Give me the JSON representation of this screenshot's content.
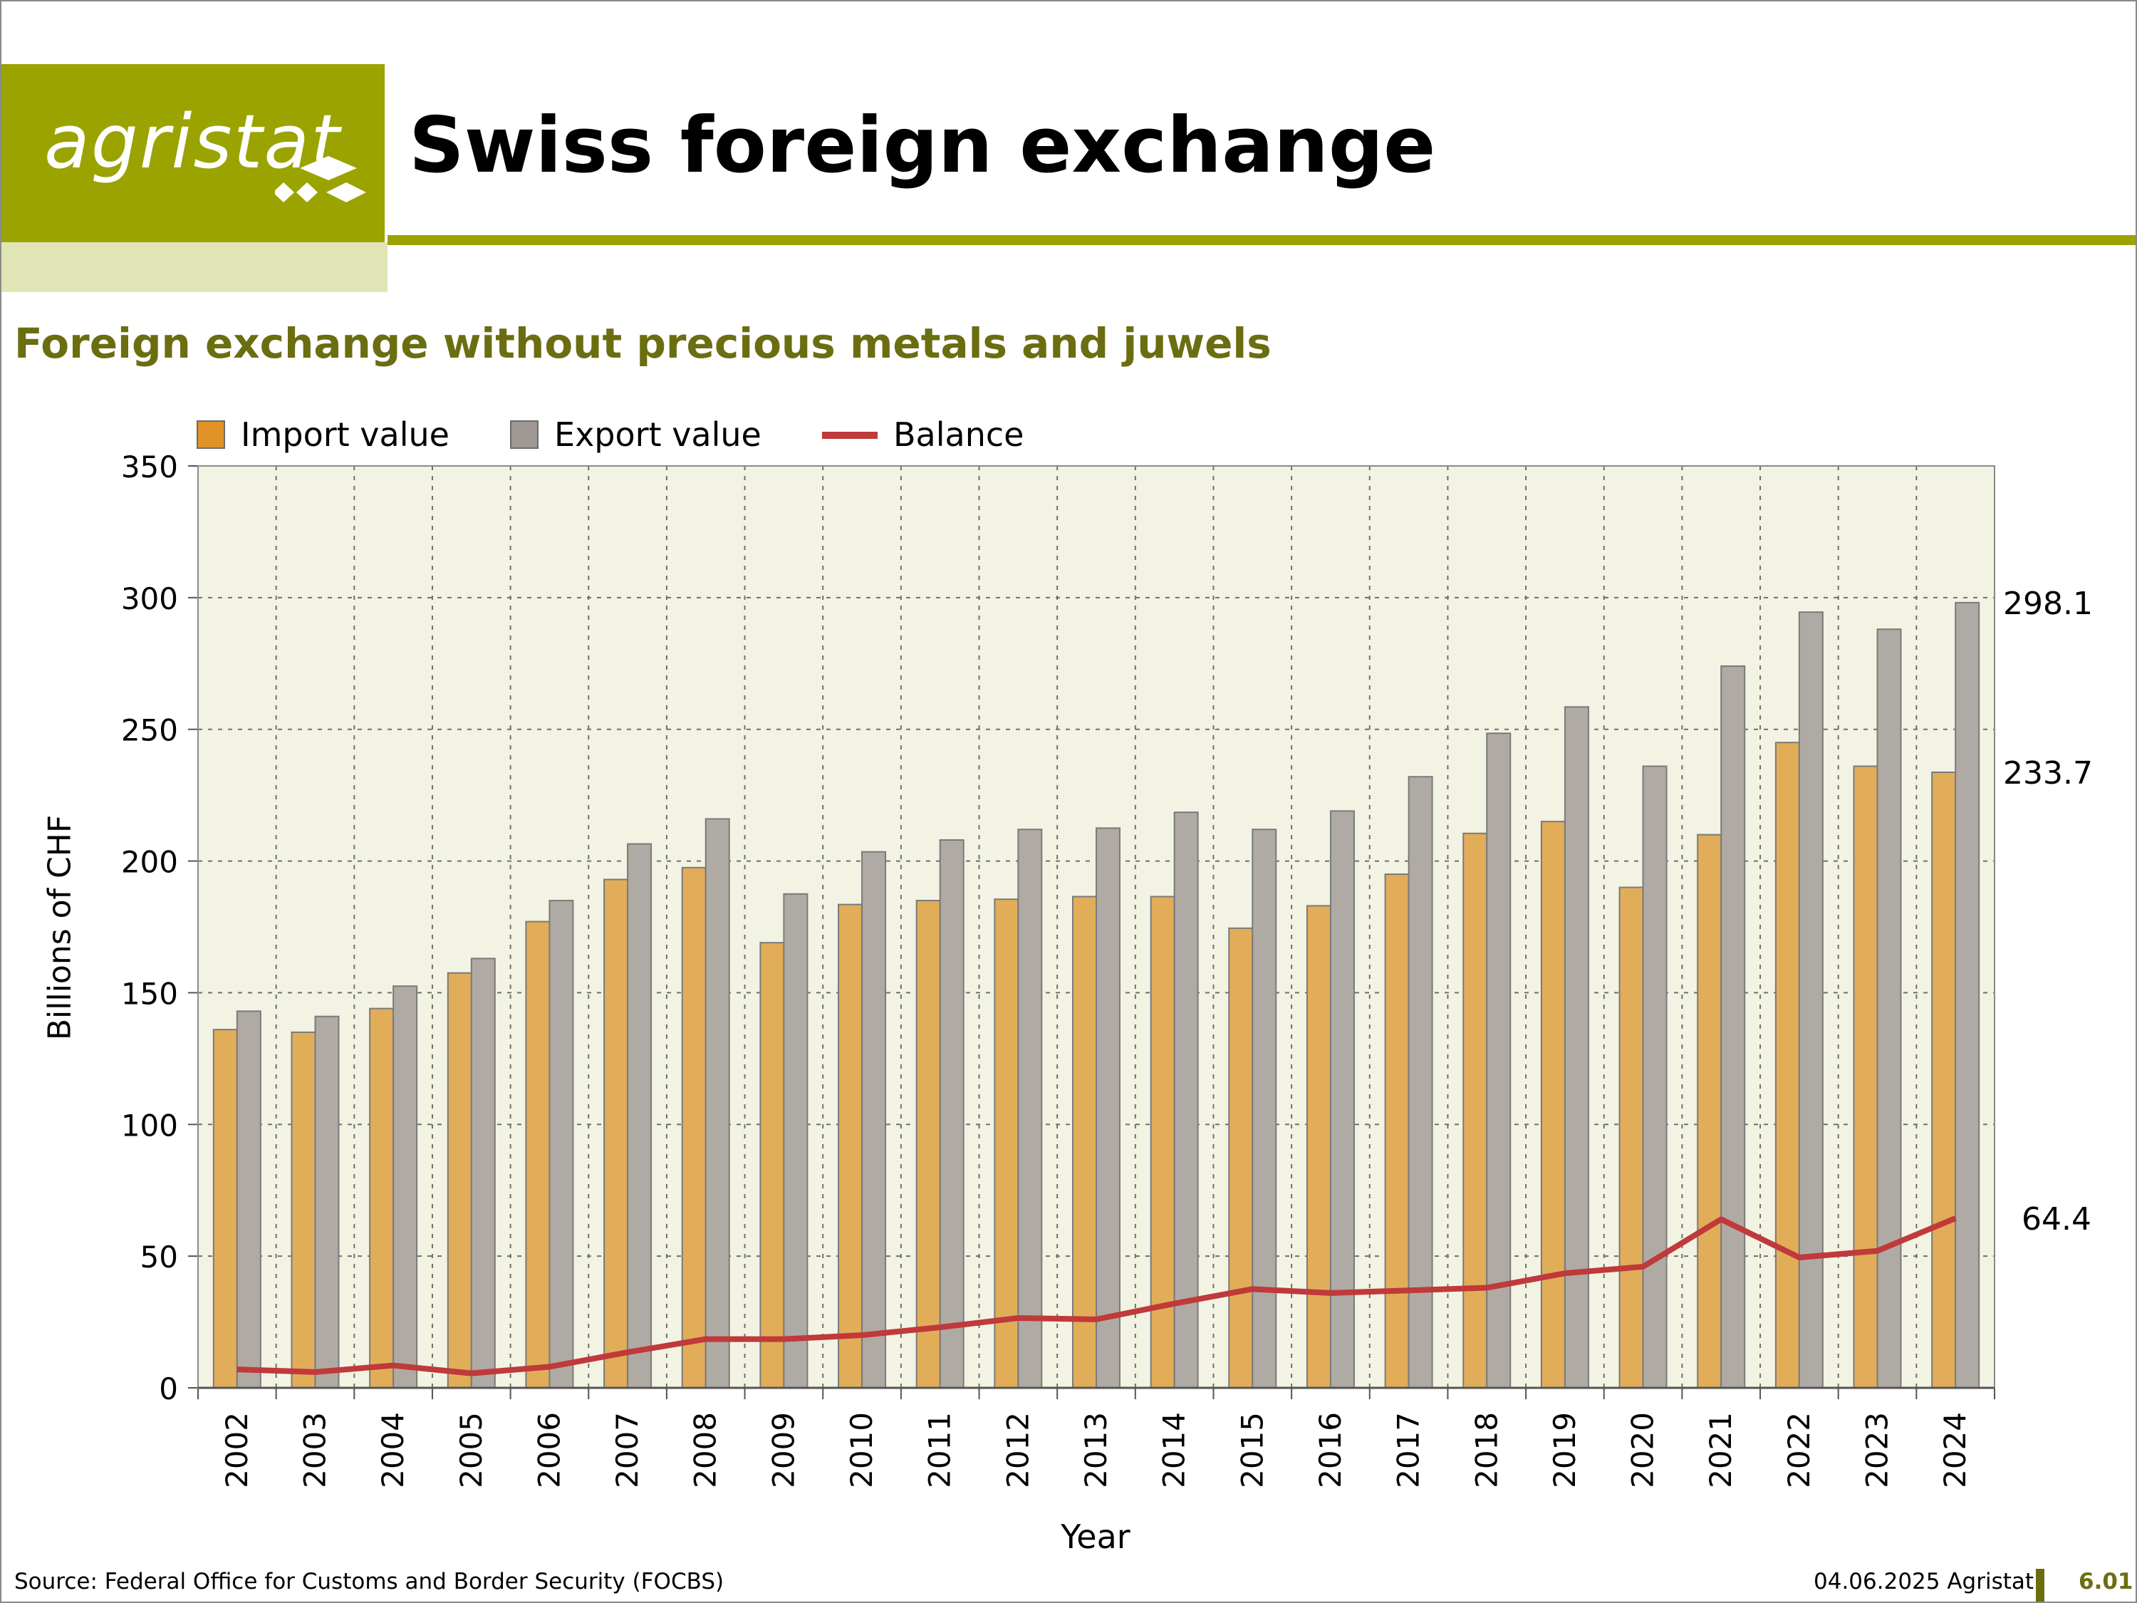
{
  "header": {
    "logo_text": "agristat",
    "title": "Swiss foreign exchange",
    "subtitle": "Foreign exchange without precious metals and juwels"
  },
  "footer": {
    "source": "Source: Federal Office for Customs and Border Security (FOCBS)",
    "date_publisher": "04.06.2025 Agristat",
    "page": "6.01"
  },
  "colors": {
    "brand": "#9ba300",
    "subtitle": "#6b6e10",
    "plot_bg": "#f3f3e3",
    "import": "#e2ad58",
    "export": "#b0aaa4",
    "balance": "#c0393b"
  },
  "chart_data": {
    "type": "bar",
    "title": "",
    "xlabel": "Year",
    "ylabel": "Billions of CHF",
    "ylim": [
      0,
      350
    ],
    "yticks": [
      0,
      50,
      100,
      150,
      200,
      250,
      300,
      350
    ],
    "grid": true,
    "legend": "top-left",
    "categories": [
      "2002",
      "2003",
      "2004",
      "2005",
      "2006",
      "2007",
      "2008",
      "2009",
      "2010",
      "2011",
      "2012",
      "2013",
      "2014",
      "2015",
      "2016",
      "2017",
      "2018",
      "2019",
      "2020",
      "2021",
      "2022",
      "2023",
      "2024"
    ],
    "series": [
      {
        "name": "Import value",
        "type": "bar",
        "values": [
          136,
          135,
          144,
          157.5,
          177,
          193,
          197.5,
          169,
          183.5,
          185,
          185.5,
          186.5,
          186.5,
          174.5,
          183,
          195,
          210.5,
          215,
          190,
          210,
          245,
          236,
          233.7
        ]
      },
      {
        "name": "Export value",
        "type": "bar",
        "values": [
          143,
          141,
          152.5,
          163,
          185,
          206.5,
          216,
          187.5,
          203.5,
          208,
          212,
          212.5,
          218.5,
          212,
          219,
          232,
          248.5,
          258.5,
          236,
          274,
          294.5,
          288,
          298.1
        ]
      },
      {
        "name": "Balance",
        "type": "line",
        "values": [
          7,
          6,
          8.5,
          5.5,
          8,
          13.5,
          18.5,
          18.5,
          20,
          23,
          26.5,
          26,
          32,
          37.5,
          36,
          37,
          38,
          43.5,
          46,
          64,
          49.5,
          52,
          64.4
        ]
      }
    ],
    "end_labels": [
      "298.1",
      "233.7",
      "64.4"
    ]
  }
}
